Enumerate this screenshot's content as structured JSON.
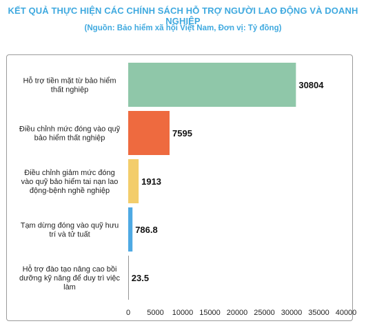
{
  "header": {
    "title": "KẾT QUẢ THỰC HIỆN CÁC CHÍNH SÁCH HỖ TRỢ NGƯỜI LAO ĐỘNG VÀ DOANH NGHIỆP",
    "subtitle": "(Nguồn: Bảo hiểm xã hội Việt Nam, Đơn vị: Tỷ đồng)"
  },
  "chart_data": {
    "type": "bar",
    "orientation": "horizontal",
    "categories": [
      [
        "Hỗ trợ tiền mặt từ bảo hiểm",
        "thất nghiệp"
      ],
      [
        "Điều chỉnh mức đóng vào quỹ",
        "bảo hiểm thất nghiệp"
      ],
      [
        "Điều chỉnh giảm mức đóng",
        "vào quỹ bảo hiểm tai nạn lao",
        "động-bệnh nghề nghiệp"
      ],
      [
        "Tạm dừng đóng vào quỹ hưu",
        "trí và tử tuất"
      ],
      [
        "Hỗ trợ đào tạo nâng cao bồi",
        "dưỡng kỹ năng để duy trì việc",
        "làm"
      ]
    ],
    "values": [
      30804,
      7595,
      1913,
      786.8,
      23.5
    ],
    "value_labels": [
      "30804",
      "7595",
      "1913",
      "786.8",
      "23.5"
    ],
    "colors": [
      "#8fc7a9",
      "#ee6a3f",
      "#f3cd6b",
      "#4ea9e3",
      "#7a7a7a"
    ],
    "xlim": [
      0,
      40000
    ],
    "xticks": [
      "0",
      "5000",
      "10000",
      "15000",
      "20000",
      "25000",
      "30000",
      "35000",
      "40000"
    ],
    "xtick_values": [
      0,
      5000,
      10000,
      15000,
      20000,
      25000,
      30000,
      35000,
      40000
    ],
    "grid": false,
    "legend": "none"
  }
}
